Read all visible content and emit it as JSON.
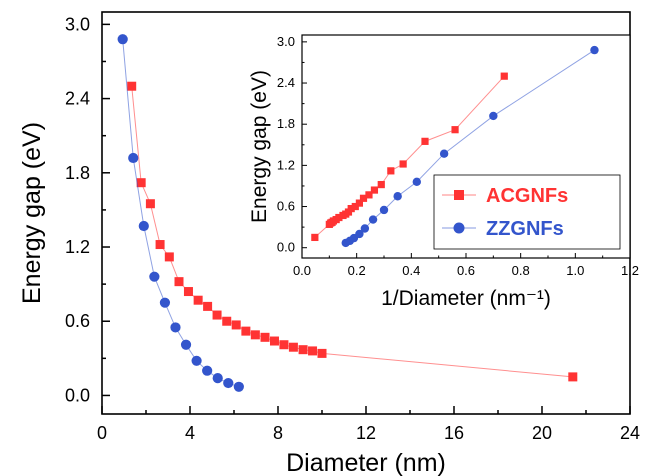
{
  "chart_data": [
    {
      "type": "line",
      "xlabel": "Diameter (nm)",
      "ylabel": "Energy gap (eV)",
      "xlim": [
        0,
        24
      ],
      "ylim": [
        -0.15,
        3.1
      ],
      "xticks": [
        0,
        4,
        8,
        12,
        16,
        20,
        24
      ],
      "yticks": [
        0.0,
        0.6,
        1.2,
        1.8,
        2.4,
        3.0
      ],
      "xtick_labels": [
        "0",
        "4",
        "8",
        "12",
        "16",
        "20",
        "24"
      ],
      "ytick_labels": [
        "0.0",
        "0.6",
        "1.2",
        "1.8",
        "2.4",
        "3.0"
      ],
      "grid": false,
      "series": [
        {
          "name": "ACGNFs",
          "color": "#ff3333",
          "marker": "square",
          "x": [
            1.35,
            1.78,
            2.2,
            2.64,
            3.06,
            3.5,
            3.93,
            4.37,
            4.8,
            5.23,
            5.67,
            6.1,
            6.54,
            6.97,
            7.41,
            7.84,
            8.27,
            8.7,
            9.14,
            9.57,
            10.0,
            21.4
          ],
          "y": [
            2.5,
            1.72,
            1.55,
            1.22,
            1.12,
            0.92,
            0.84,
            0.77,
            0.72,
            0.65,
            0.6,
            0.57,
            0.52,
            0.49,
            0.47,
            0.44,
            0.41,
            0.39,
            0.37,
            0.36,
            0.34,
            0.15
          ]
        },
        {
          "name": "ZZGNFs",
          "color": "#3355cc",
          "marker": "circle",
          "x": [
            0.94,
            1.42,
            1.9,
            2.38,
            2.86,
            3.34,
            3.82,
            4.3,
            4.78,
            5.26,
            5.74,
            6.22
          ],
          "y": [
            2.88,
            1.92,
            1.37,
            0.96,
            0.75,
            0.55,
            0.41,
            0.28,
            0.2,
            0.14,
            0.1,
            0.07
          ]
        }
      ]
    },
    {
      "type": "line",
      "xlabel": "1/Diameter (nm⁻¹)",
      "ylabel": "Energy gap (eV)",
      "xlim": [
        0.0,
        1.2
      ],
      "ylim": [
        -0.15,
        3.1
      ],
      "xticks": [
        0.0,
        0.2,
        0.4,
        0.6,
        0.8,
        1.0,
        1.2
      ],
      "yticks": [
        0.0,
        0.6,
        1.2,
        1.8,
        2.4,
        3.0
      ],
      "xtick_labels": [
        "0.0",
        "0.2",
        "0.4",
        "0.6",
        "0.8",
        "1.0",
        "1.2"
      ],
      "ytick_labels": [
        "0.0",
        "0.6",
        "1.2",
        "1.8",
        "2.4",
        "3.0"
      ],
      "legend": "bottom-right",
      "series": [
        {
          "name": "ACGNFs",
          "color": "#ff3333",
          "marker": "square",
          "x": [
            0.047,
            0.1,
            0.105,
            0.11,
            0.115,
            0.125,
            0.135,
            0.15,
            0.16,
            0.17,
            0.18,
            0.195,
            0.21,
            0.225,
            0.245,
            0.265,
            0.29,
            0.325,
            0.37,
            0.45,
            0.56,
            0.74
          ],
          "y": [
            0.15,
            0.34,
            0.36,
            0.37,
            0.39,
            0.41,
            0.44,
            0.47,
            0.49,
            0.52,
            0.57,
            0.6,
            0.65,
            0.72,
            0.77,
            0.84,
            0.92,
            1.12,
            1.22,
            1.55,
            1.72,
            2.5
          ]
        },
        {
          "name": "ZZGNFs",
          "color": "#3355cc",
          "marker": "circle",
          "x": [
            0.16,
            0.175,
            0.19,
            0.21,
            0.23,
            0.26,
            0.3,
            0.35,
            0.42,
            0.52,
            0.7,
            1.07
          ],
          "y": [
            0.07,
            0.1,
            0.14,
            0.2,
            0.28,
            0.41,
            0.55,
            0.75,
            0.96,
            1.37,
            1.92,
            2.88
          ]
        }
      ]
    }
  ]
}
